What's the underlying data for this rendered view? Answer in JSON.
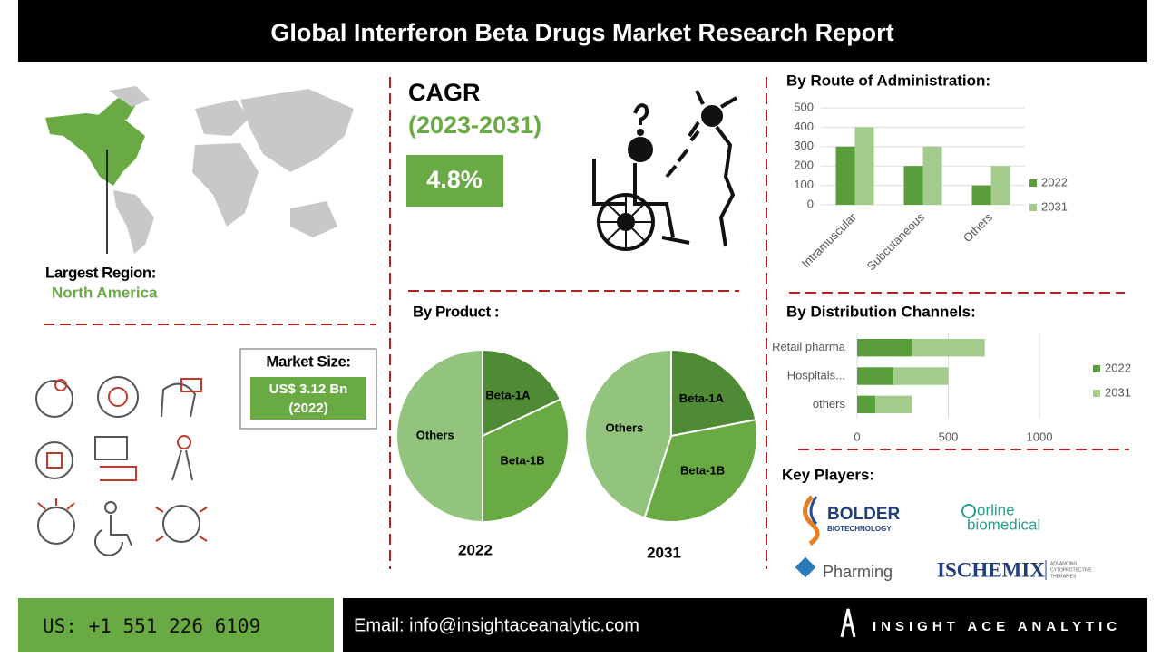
{
  "header": {
    "title": "Global Interferon Beta Drugs Market Research Report"
  },
  "region": {
    "label": "Largest Region:",
    "value": "North America"
  },
  "market_size": {
    "label": "Market Size:",
    "value": "US$ 3.12 Bn",
    "year": "(2022)"
  },
  "cagr": {
    "title": "CAGR",
    "period": "(2023-2031)",
    "value": "4.8%"
  },
  "product_title": "By Product :",
  "key_players": {
    "title": "Key Players:",
    "logos": [
      "BOLDER",
      "BIOTECHNOLOGY",
      "orline",
      "biomedical",
      "Pharming",
      "ISCHEMIX",
      "ADVANCING",
      "CYTOPROTECTIVE",
      "THERAPIES"
    ]
  },
  "footer": {
    "phone": "US: +1 551 226 6109",
    "email": "Email: info@insightaceanalytic.com",
    "brand": "INSIGHT ACE ANALYTIC"
  },
  "chart_data": [
    {
      "type": "bar",
      "title": "By Route of Administration:",
      "categories": [
        "Intramuscular",
        "Subcutaneous",
        "Others"
      ],
      "series": [
        {
          "name": "2022",
          "color": "#5a9e3c",
          "values": [
            300,
            200,
            100
          ]
        },
        {
          "name": "2031",
          "color": "#a3cc8c",
          "values": [
            400,
            300,
            200
          ]
        }
      ],
      "ylim": [
        0,
        500
      ],
      "yticks": [
        0,
        100,
        200,
        300,
        400,
        500
      ],
      "grid": true,
      "legend": "right"
    },
    {
      "type": "barh",
      "title": "By Distribution Channels:",
      "categories": [
        "Retail pharma",
        "Hospitals...",
        "others"
      ],
      "series": [
        {
          "name": "2022",
          "color": "#5a9e3c",
          "values": [
            300,
            200,
            100
          ]
        },
        {
          "name": "2031",
          "color": "#a3cc8c",
          "values": [
            400,
            300,
            200
          ]
        }
      ],
      "xlim": [
        0,
        1000
      ],
      "xticks": [
        0,
        500,
        1000
      ],
      "grid": true,
      "legend": "right"
    },
    {
      "type": "pie",
      "title": "2022",
      "categories": [
        "Beta-1A",
        "Beta-1B",
        "Others"
      ],
      "values": [
        18,
        32,
        50
      ],
      "colors": [
        "#4f8a34",
        "#6aaa45",
        "#93c47d"
      ]
    },
    {
      "type": "pie",
      "title": "2031",
      "categories": [
        "Beta-1A",
        "Beta-1B",
        "Others"
      ],
      "values": [
        22,
        33,
        45
      ],
      "colors": [
        "#4f8a34",
        "#6aaa45",
        "#93c47d"
      ]
    }
  ]
}
